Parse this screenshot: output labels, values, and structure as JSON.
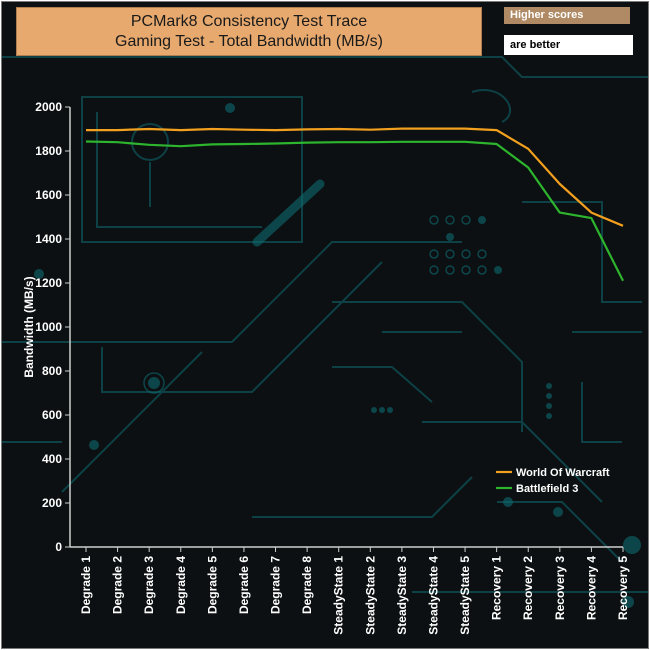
{
  "title_lines": [
    "PCMark8 Consistency Test Trace",
    "Gaming Test - Total Bandwidth (MB/s)"
  ],
  "badge": {
    "top": "Higher scores",
    "bottom": "are better"
  },
  "colors": {
    "background": "#0c1012",
    "circuit": "#0e6a70",
    "title_bg": "#e7a96e",
    "axis": "#cfcfcf"
  },
  "chart_data": {
    "type": "line",
    "title": "PCMark8 Consistency Test Trace Gaming Test - Total Bandwidth (MB/s)",
    "ylabel": "Bandwidth (MB/s)",
    "xlabel": "",
    "ylim": [
      0,
      2000
    ],
    "yticks": [
      0,
      200,
      400,
      600,
      800,
      1000,
      1200,
      1400,
      1600,
      1800,
      2000
    ],
    "grid": false,
    "legend_position": "bottom-right",
    "categories": [
      "Degrade 1",
      "Degrade 2",
      "Degrade 3",
      "Degrade 4",
      "Degrade 5",
      "Degrade 6",
      "Degrade 7",
      "Degrade 8",
      "SteadyState 1",
      "SteadyState 2",
      "SteadyState 3",
      "SteadyState 4",
      "SteadyState 5",
      "Recovery 1",
      "Recovery 2",
      "Recovery 3",
      "Recovery 4",
      "Recovery 5"
    ],
    "series": [
      {
        "name": "World Of Warcraft",
        "color": "#f2a01e",
        "values": [
          1895,
          1895,
          1900,
          1895,
          1900,
          1897,
          1895,
          1898,
          1900,
          1897,
          1902,
          1902,
          1902,
          1895,
          1810,
          1650,
          1520,
          1460
        ]
      },
      {
        "name": "Battlefield 3",
        "color": "#2db52d",
        "values": [
          1843,
          1840,
          1828,
          1822,
          1830,
          1832,
          1834,
          1838,
          1840,
          1840,
          1842,
          1842,
          1842,
          1832,
          1725,
          1520,
          1495,
          1210
        ]
      }
    ]
  }
}
